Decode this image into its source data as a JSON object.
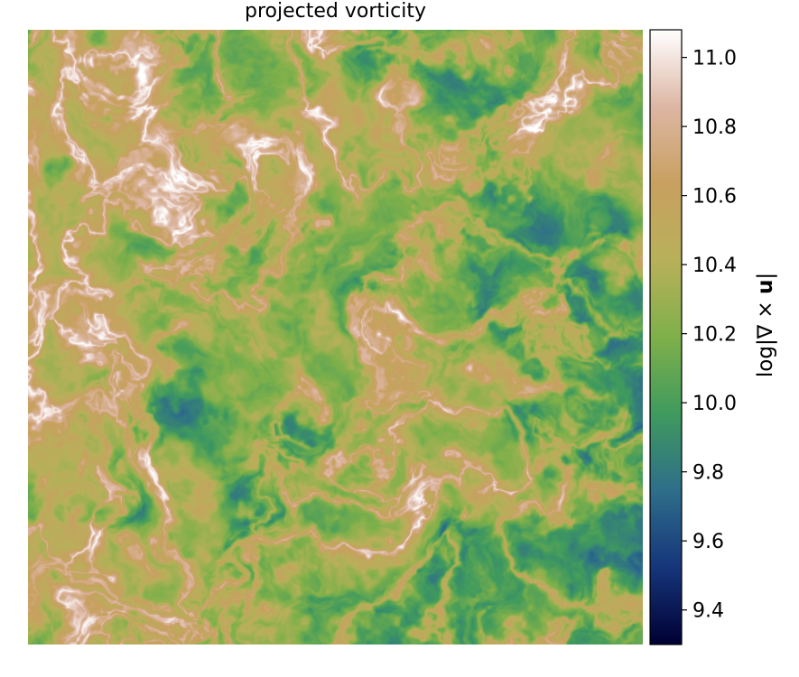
{
  "title": "projected vorticity",
  "chart_data": {
    "type": "heatmap",
    "title": "projected vorticity",
    "colorbar": {
      "label": "log|∇ × u|",
      "label_parts": {
        "prefix": "log|∇ × ",
        "bold_symbol": "u",
        "suffix": "|"
      },
      "range": [
        9.3,
        11.08
      ],
      "ticks": [
        9.4,
        9.6,
        9.8,
        10.0,
        10.2,
        10.4,
        10.6,
        10.8,
        11.0
      ],
      "tick_labels": [
        "9.4",
        "9.6",
        "9.8",
        "10.0",
        "10.2",
        "10.4",
        "10.6",
        "10.8",
        "11.0"
      ],
      "colormap": "gist_earth",
      "colormap_stops": [
        "#000033",
        "#16357a",
        "#2e6e8a",
        "#3f9a5e",
        "#7fb04a",
        "#b8b05a",
        "#c8a060",
        "#ddb6a4",
        "#ffffff"
      ]
    },
    "xlabel": "",
    "ylabel": "",
    "axes_visible": false,
    "grid": false,
    "field_description": "turbulent vorticity field, values mostly 9.5 to 10.6 with thin filaments up to ~11.0"
  }
}
